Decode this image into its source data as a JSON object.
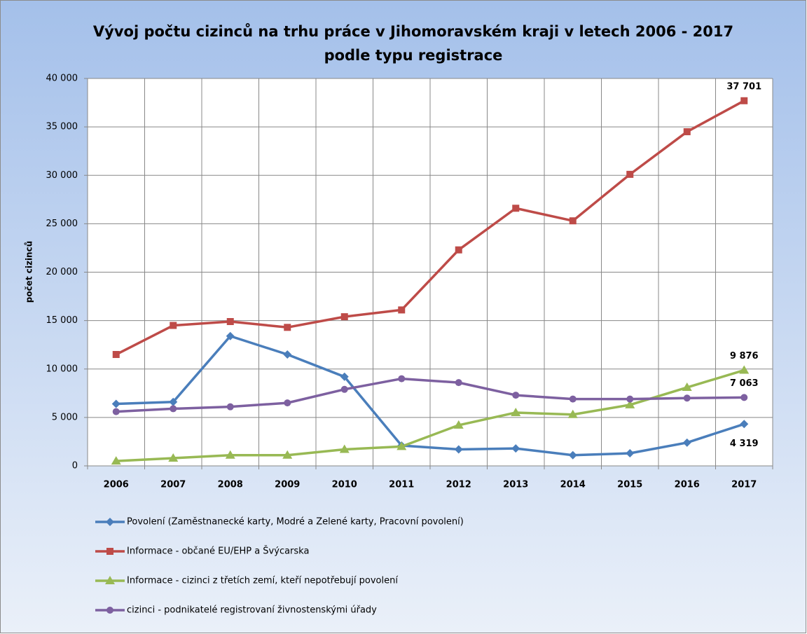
{
  "chart_data": {
    "type": "line",
    "title": [
      "Vývoj počtu cizinců na trhu práce v Jihomoravském kraji v letech 2006 - 2017",
      "podle typu registrace"
    ],
    "ylabel": "počet cizinců",
    "categories": [
      "2006",
      "2007",
      "2008",
      "2009",
      "2010",
      "2011",
      "2012",
      "2013",
      "2014",
      "2015",
      "2016",
      "2017"
    ],
    "series": [
      {
        "name": "Povolení (Zaměstnanecké karty, Modré a Zelené karty, Pracovní povolení)",
        "color": "#4a7ebb",
        "marker": "diamond",
        "values": [
          6400,
          6600,
          13400,
          11500,
          9200,
          2100,
          1700,
          1800,
          1100,
          1300,
          2400,
          4319
        ],
        "value_labels": [
          null,
          null,
          null,
          null,
          null,
          null,
          null,
          null,
          null,
          null,
          null,
          "4 319"
        ]
      },
      {
        "name": "Informace - občané EU/EHP a Švýcarska",
        "color": "#be4b48",
        "marker": "square",
        "values": [
          11500,
          14500,
          14900,
          14300,
          15400,
          16100,
          22300,
          26600,
          25300,
          30100,
          34500,
          37701
        ],
        "value_labels": [
          null,
          null,
          null,
          null,
          null,
          null,
          null,
          null,
          null,
          null,
          null,
          "37 701"
        ]
      },
      {
        "name": "Informace - cizinci z třetích zemí, kteří nepotřebují povolení",
        "color": "#98b954",
        "marker": "triangle",
        "values": [
          500,
          800,
          1100,
          1100,
          1700,
          2000,
          4200,
          5500,
          5300,
          6300,
          8100,
          9876
        ],
        "value_labels": [
          null,
          null,
          null,
          null,
          null,
          null,
          null,
          null,
          null,
          null,
          null,
          "9 876"
        ]
      },
      {
        "name": "cizinci - podnikatelé registrovaní živnostenskými úřady",
        "color": "#7d60a0",
        "marker": "circle",
        "values": [
          5600,
          5900,
          6100,
          6500,
          7900,
          9000,
          8600,
          7300,
          6900,
          6900,
          7000,
          7063
        ],
        "value_labels": [
          null,
          null,
          null,
          null,
          null,
          null,
          null,
          null,
          null,
          null,
          null,
          "7 063"
        ]
      }
    ],
    "ylim": [
      0,
      40000
    ],
    "yticks": [
      0,
      {
        "value": 5000,
        "label": "5 000"
      },
      {
        "value": 10000,
        "label": "10 000"
      },
      {
        "value": 15000,
        "label": "15 000"
      },
      {
        "value": 20000,
        "label": "20 000"
      },
      {
        "value": 25000,
        "label": "25 000"
      },
      {
        "value": 30000,
        "label": "30 000"
      },
      {
        "value": 35000,
        "label": "35 000"
      },
      {
        "value": 40000,
        "label": "40 000"
      }
    ],
    "grid": true,
    "legend": "bottom"
  }
}
